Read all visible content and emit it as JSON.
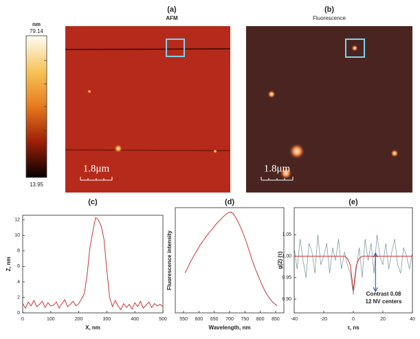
{
  "colorbar": {
    "unit": "nm",
    "max": 79.14,
    "min": 13.95
  },
  "images": [
    {
      "label": "(a)",
      "title": "AFM",
      "scale": "1.8μm"
    },
    {
      "label": "(b)",
      "title": "Fluorescence",
      "scale": "1.8μm"
    }
  ],
  "chart_data": [
    {
      "type": "line",
      "label": "(c)",
      "xlabel": "X, nm",
      "ylabel": "Z, nm",
      "x": [
        0,
        10,
        20,
        30,
        40,
        50,
        60,
        70,
        80,
        90,
        100,
        110,
        120,
        130,
        140,
        150,
        160,
        170,
        180,
        190,
        200,
        210,
        220,
        230,
        240,
        250,
        260,
        270,
        280,
        290,
        300,
        310,
        320,
        330,
        340,
        350,
        360,
        370,
        380,
        390,
        400,
        410,
        420,
        430,
        440,
        450,
        460,
        470,
        480,
        490,
        500
      ],
      "series": [
        {
          "color": "#c8323a",
          "values": [
            1.2,
            0.6,
            1.4,
            0.9,
            1.6,
            0.8,
            1.1,
            1.5,
            0.7,
            1.3,
            0.9,
            1.0,
            1.4,
            0.6,
            1.2,
            1.7,
            0.8,
            1.1,
            1.5,
            0.9,
            1.2,
            1.8,
            2.5,
            5.0,
            8.5,
            10.5,
            12.3,
            12.0,
            11.2,
            9.5,
            5.5,
            2.0,
            0.8,
            1.6,
            0.9,
            0.4,
            1.2,
            0.7,
            1.1,
            0.5,
            1.3,
            0.8,
            1.5,
            0.6,
            1.0,
            1.4,
            0.7,
            1.2,
            0.9,
            1.1,
            0.8
          ]
        }
      ],
      "xlim": [
        0,
        500
      ],
      "ylim": [
        0,
        12.6
      ],
      "xticks": [
        0,
        100,
        200,
        300,
        400,
        500
      ],
      "yticks": [
        0,
        2,
        4,
        6,
        8,
        10,
        12
      ]
    },
    {
      "type": "line",
      "label": "(d)",
      "xlabel": "Wavelength, nm",
      "ylabel": "Fluorescence intensity",
      "x": [
        555,
        565,
        575,
        585,
        595,
        605,
        615,
        625,
        635,
        645,
        655,
        665,
        675,
        685,
        695,
        705,
        715,
        725,
        735,
        745,
        755,
        765,
        775,
        785,
        795,
        805,
        815,
        825,
        835,
        845,
        855
      ],
      "series": [
        {
          "color": "#c8323a",
          "values": [
            0.38,
            0.44,
            0.5,
            0.55,
            0.6,
            0.65,
            0.69,
            0.73,
            0.77,
            0.8,
            0.84,
            0.87,
            0.9,
            0.93,
            0.95,
            0.96,
            0.93,
            0.88,
            0.82,
            0.75,
            0.67,
            0.58,
            0.49,
            0.41,
            0.34,
            0.27,
            0.21,
            0.16,
            0.12,
            0.09,
            0.07
          ]
        }
      ],
      "xlim": [
        523,
        877
      ],
      "ylim": [
        0,
        1
      ],
      "xticks": [
        550,
        600,
        650,
        700,
        750,
        800,
        850
      ]
    },
    {
      "type": "line",
      "label": "(e)",
      "xlabel": "τ, ns",
      "ylabel": "g(2) (τ)",
      "x": [
        -40,
        -38,
        -36,
        -34,
        -32,
        -30,
        -28,
        -26,
        -24,
        -22,
        -20,
        -18,
        -16,
        -14,
        -12,
        -10,
        -8,
        -6,
        -4,
        -2,
        0,
        2,
        4,
        6,
        8,
        10,
        12,
        14,
        16,
        18,
        20,
        22,
        24,
        26,
        28,
        30,
        32,
        34,
        36,
        38,
        40
      ],
      "series": [
        {
          "color": "#6f8f96",
          "values": [
            1.02,
            0.97,
            1.04,
            0.99,
            0.95,
            1.03,
            1.01,
            0.96,
            1.05,
            0.98,
            1.0,
            1.03,
            0.96,
            1.02,
            0.99,
            1.04,
            0.97,
            1.01,
            0.98,
            0.96,
            0.91,
            0.97,
            1.02,
            0.95,
            1.04,
            0.99,
            1.03,
            0.96,
            1.05,
            1.0,
            0.98,
            1.03,
            0.97,
            1.01,
            1.04,
            0.98,
            0.96,
            1.02,
            1.0,
            0.97,
            1.01
          ]
        },
        {
          "color": "#d42a2a",
          "values": [
            1.0,
            1.0,
            1.0,
            1.0,
            1.0,
            1.0,
            1.0,
            1.0,
            1.0,
            1.0,
            1.0,
            1.0,
            1.0,
            1.0,
            1.0,
            1.0,
            1.0,
            1.0,
            0.995,
            0.979,
            0.92,
            0.979,
            0.995,
            1.0,
            1.0,
            1.0,
            1.0,
            1.0,
            1.0,
            1.0,
            1.0,
            1.0,
            1.0,
            1.0,
            1.0,
            1.0,
            1.0,
            1.0,
            1.0,
            1.0,
            1.0
          ]
        }
      ],
      "xlim": [
        -40,
        40
      ],
      "ylim": [
        0.868,
        1.113
      ],
      "xticks": [
        -40,
        -20,
        0,
        20,
        40
      ],
      "yticks": [
        {
          "value": 0.9,
          "label": "0.90"
        },
        0.95,
        {
          "value": 1.0,
          "label": "1.00"
        },
        1.05
      ],
      "annotations": [
        "Contrast 0.08",
        "12 NV centers"
      ]
    }
  ]
}
